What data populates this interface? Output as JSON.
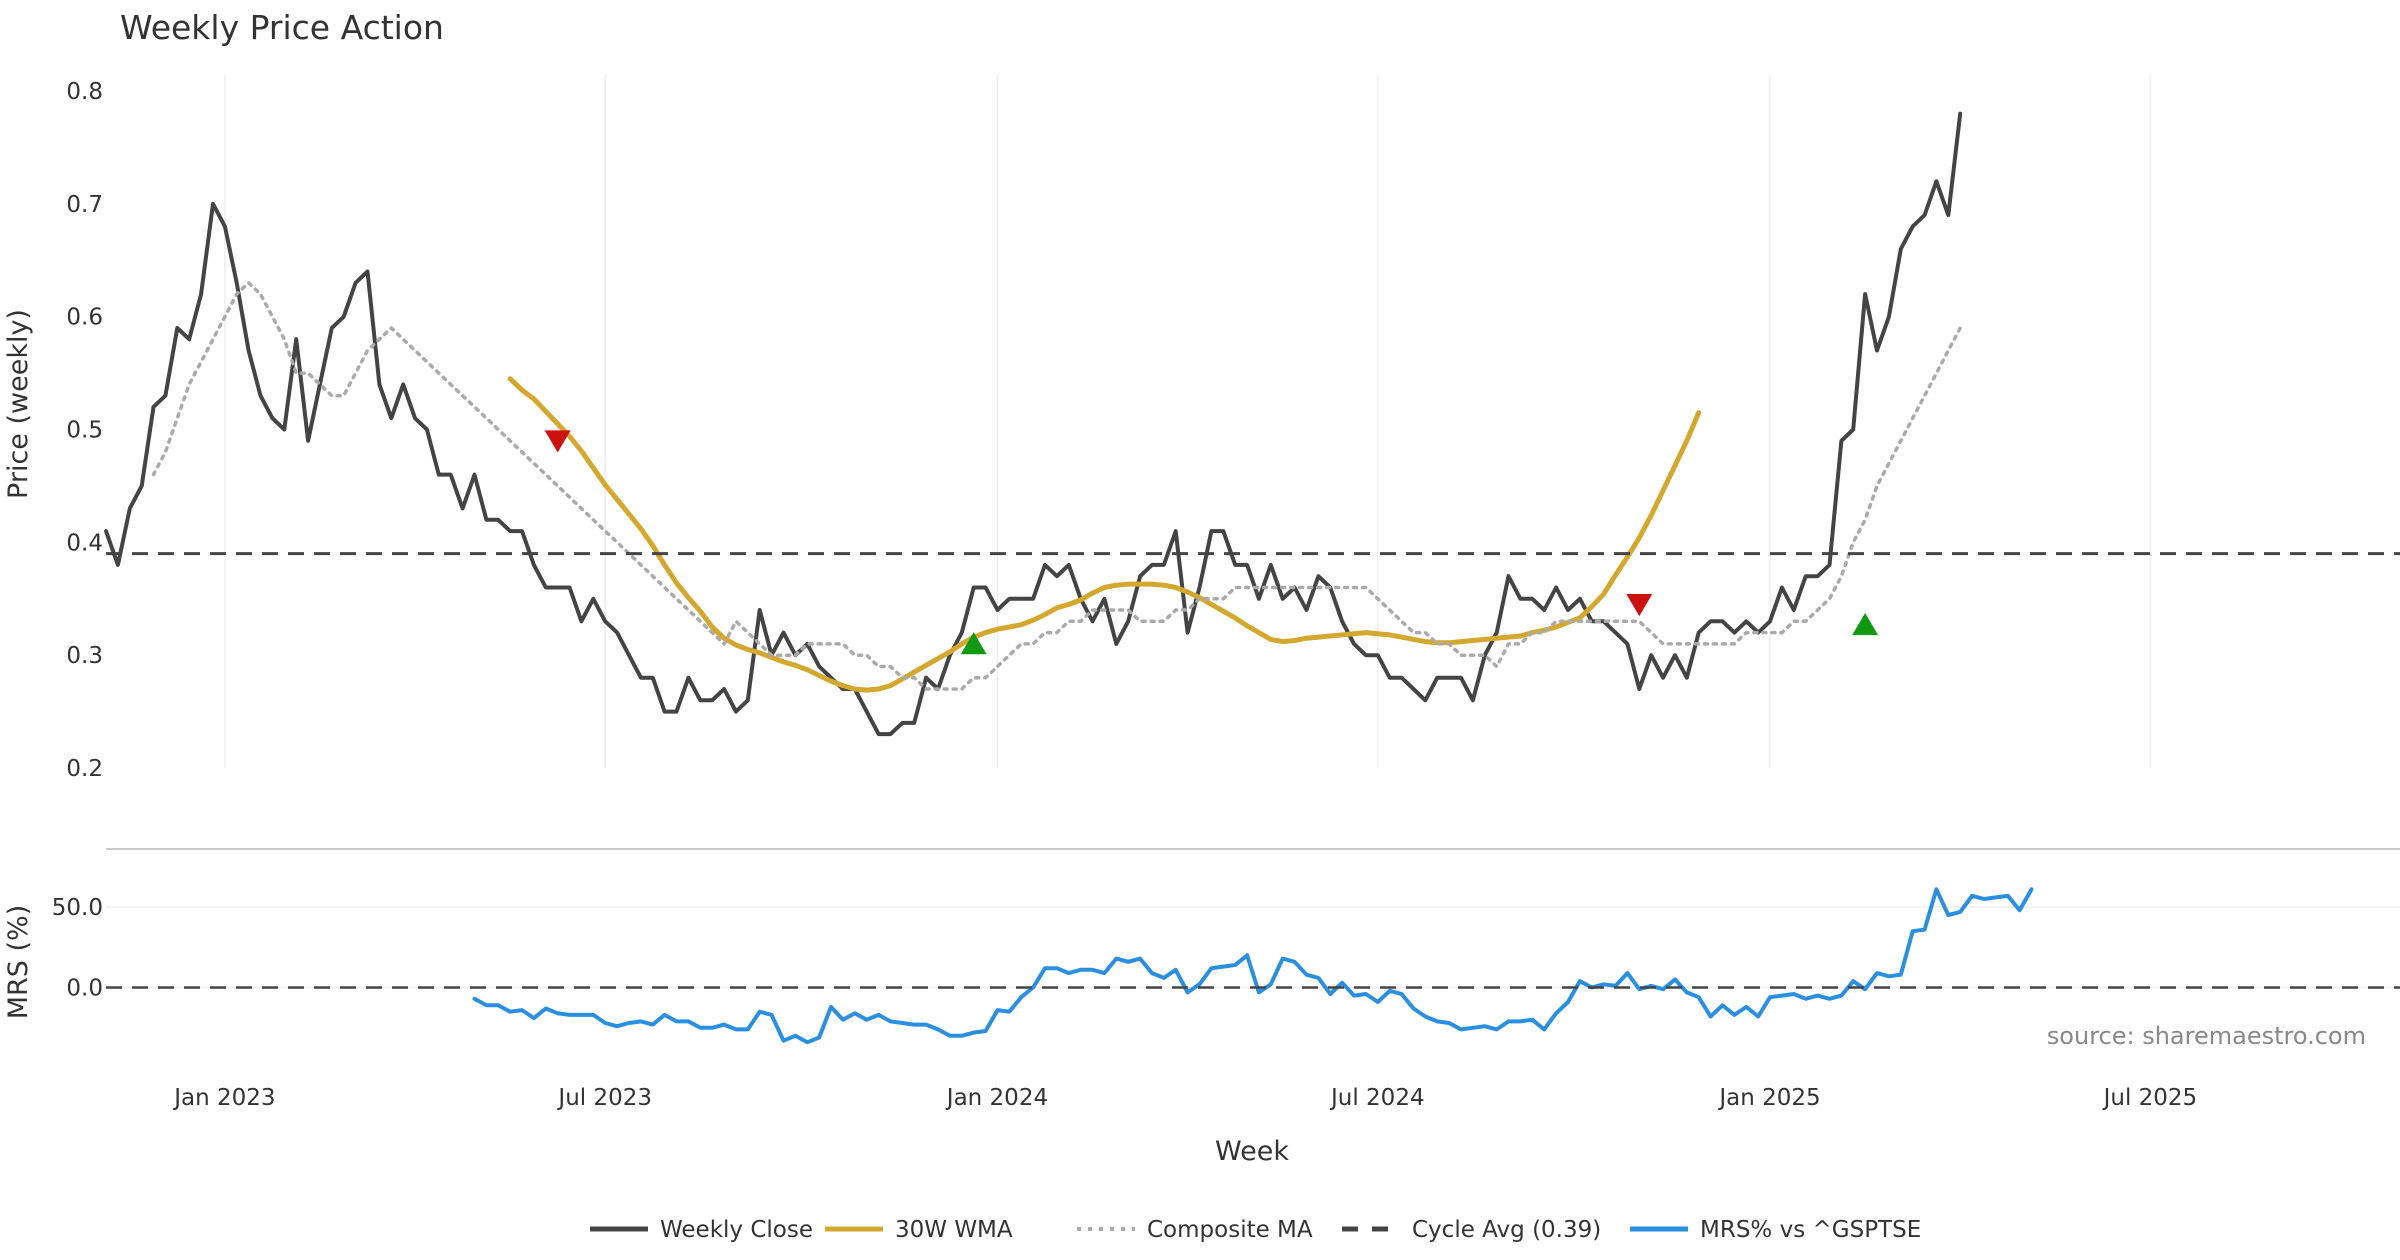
{
  "chart_data": {
    "type": "line",
    "title": "Weekly Price Action",
    "xlabel": "Week",
    "source": "source: sharemaestro.com",
    "x_ticks": [
      {
        "label": "Jan 2023",
        "week": 10
      },
      {
        "label": "Jul 2023",
        "week": 42
      },
      {
        "label": "Jan 2024",
        "week": 75
      },
      {
        "label": "Jul 2024",
        "week": 107
      },
      {
        "label": "Jan 2025",
        "week": 140
      },
      {
        "label": "Jul 2025",
        "week": 172
      }
    ],
    "week_range": [
      0,
      193
    ],
    "price_panel": {
      "ylabel": "Price (weekly)",
      "ylim": [
        0.2,
        0.8
      ],
      "yticks": [
        "0.2",
        "0.3",
        "0.4",
        "0.5",
        "0.6",
        "0.7",
        "0.8"
      ],
      "grid": "vertical",
      "cycle_avg": 0.39,
      "series": [
        {
          "name": "Weekly Close",
          "color": "#444444",
          "style": "solid",
          "start_week": 0,
          "values": [
            0.41,
            0.38,
            0.43,
            0.45,
            0.52,
            0.53,
            0.59,
            0.58,
            0.62,
            0.7,
            0.68,
            0.63,
            0.57,
            0.53,
            0.51,
            0.5,
            0.58,
            0.49,
            0.54,
            0.59,
            0.6,
            0.63,
            0.64,
            0.54,
            0.51,
            0.54,
            0.51,
            0.5,
            0.46,
            0.46,
            0.43,
            0.46,
            0.42,
            0.42,
            0.41,
            0.41,
            0.38,
            0.36,
            0.36,
            0.36,
            0.33,
            0.35,
            0.33,
            0.32,
            0.3,
            0.28,
            0.28,
            0.25,
            0.25,
            0.28,
            0.26,
            0.26,
            0.27,
            0.25,
            0.26,
            0.34,
            0.3,
            0.32,
            0.3,
            0.31,
            0.29,
            0.28,
            0.27,
            0.27,
            0.25,
            0.23,
            0.23,
            0.24,
            0.24,
            0.28,
            0.27,
            0.3,
            0.32,
            0.36,
            0.36,
            0.34,
            0.35,
            0.35,
            0.35,
            0.38,
            0.37,
            0.38,
            0.35,
            0.33,
            0.35,
            0.31,
            0.33,
            0.37,
            0.38,
            0.38,
            0.41,
            0.32,
            0.36,
            0.41,
            0.41,
            0.38,
            0.38,
            0.35,
            0.38,
            0.35,
            0.36,
            0.34,
            0.37,
            0.36,
            0.33,
            0.31,
            0.3,
            0.3,
            0.28,
            0.28,
            0.27,
            0.26,
            0.28,
            0.28,
            0.28,
            0.26,
            0.3,
            0.32,
            0.37,
            0.35,
            0.35,
            0.34,
            0.36,
            0.34,
            0.35,
            0.33,
            0.33,
            0.32,
            0.31,
            0.27,
            0.3,
            0.28,
            0.3,
            0.28,
            0.32,
            0.33,
            0.33,
            0.32,
            0.33,
            0.32,
            0.33,
            0.36,
            0.34,
            0.37,
            0.37,
            0.38,
            0.49,
            0.5,
            0.62,
            0.57,
            0.6,
            0.66,
            0.68,
            0.69,
            0.72,
            0.69,
            0.78
          ]
        },
        {
          "name": "30W WMA",
          "color": "#d4a82e",
          "style": "solid",
          "start_week": 34,
          "values": [
            0.545,
            0.535,
            0.527,
            0.516,
            0.505,
            0.494,
            0.481,
            0.466,
            0.451,
            0.438,
            0.425,
            0.412,
            0.397,
            0.38,
            0.364,
            0.351,
            0.339,
            0.325,
            0.315,
            0.309,
            0.305,
            0.302,
            0.298,
            0.294,
            0.291,
            0.287,
            0.282,
            0.277,
            0.273,
            0.27,
            0.269,
            0.27,
            0.273,
            0.279,
            0.285,
            0.291,
            0.297,
            0.303,
            0.31,
            0.316,
            0.32,
            0.323,
            0.325,
            0.327,
            0.331,
            0.336,
            0.342,
            0.345,
            0.349,
            0.355,
            0.36,
            0.362,
            0.363,
            0.363,
            0.363,
            0.362,
            0.36,
            0.356,
            0.351,
            0.345,
            0.339,
            0.333,
            0.326,
            0.32,
            0.314,
            0.312,
            0.313,
            0.315,
            0.316,
            0.317,
            0.318,
            0.319,
            0.32,
            0.319,
            0.318,
            0.316,
            0.314,
            0.312,
            0.311,
            0.311,
            0.312,
            0.313,
            0.314,
            0.315,
            0.316,
            0.317,
            0.32,
            0.322,
            0.325,
            0.329,
            0.333,
            0.343,
            0.354,
            0.371,
            0.387,
            0.404,
            0.424,
            0.446,
            0.468,
            0.49,
            0.515
          ]
        },
        {
          "name": "Composite MA",
          "color": "#aaaaaa",
          "style": "dotted",
          "start_week": 4,
          "values": [
            0.46,
            0.48,
            0.51,
            0.54,
            0.56,
            0.58,
            0.6,
            0.62,
            0.63,
            0.62,
            0.6,
            0.58,
            0.55,
            0.55,
            0.54,
            0.53,
            0.53,
            0.55,
            0.57,
            0.58,
            0.59,
            0.58,
            0.57,
            0.56,
            0.55,
            0.54,
            0.53,
            0.52,
            0.51,
            0.5,
            0.49,
            0.48,
            0.47,
            0.46,
            0.45,
            0.44,
            0.43,
            0.42,
            0.41,
            0.4,
            0.39,
            0.38,
            0.37,
            0.36,
            0.35,
            0.34,
            0.33,
            0.32,
            0.31,
            0.33,
            0.32,
            0.31,
            0.3,
            0.3,
            0.3,
            0.31,
            0.31,
            0.31,
            0.31,
            0.3,
            0.3,
            0.29,
            0.29,
            0.28,
            0.28,
            0.27,
            0.27,
            0.27,
            0.27,
            0.28,
            0.28,
            0.29,
            0.3,
            0.31,
            0.31,
            0.32,
            0.32,
            0.33,
            0.33,
            0.34,
            0.34,
            0.34,
            0.34,
            0.33,
            0.33,
            0.33,
            0.34,
            0.34,
            0.35,
            0.35,
            0.35,
            0.36,
            0.36,
            0.36,
            0.36,
            0.36,
            0.36,
            0.36,
            0.36,
            0.36,
            0.36,
            0.36,
            0.36,
            0.35,
            0.34,
            0.33,
            0.32,
            0.32,
            0.31,
            0.31,
            0.3,
            0.3,
            0.3,
            0.29,
            0.31,
            0.31,
            0.32,
            0.32,
            0.33,
            0.33,
            0.33,
            0.33,
            0.33,
            0.33,
            0.33,
            0.33,
            0.32,
            0.31,
            0.31,
            0.31,
            0.31,
            0.31,
            0.31,
            0.31,
            0.32,
            0.32,
            0.32,
            0.32,
            0.33,
            0.33,
            0.34,
            0.35,
            0.37,
            0.4,
            0.42,
            0.45,
            0.47,
            0.49,
            0.51,
            0.53,
            0.55,
            0.57,
            0.59
          ]
        },
        {
          "name": "Cycle Avg (0.39)",
          "color": "#444444",
          "style": "dashed",
          "constant": 0.39
        }
      ],
      "markers": [
        {
          "type": "sell",
          "week": 38,
          "value": 0.49,
          "color": "#cc1111"
        },
        {
          "type": "buy",
          "week": 73,
          "value": 0.31,
          "color": "#119911"
        },
        {
          "type": "sell",
          "week": 129,
          "value": 0.345,
          "color": "#cc1111"
        },
        {
          "type": "buy",
          "week": 148,
          "value": 0.327,
          "color": "#119911"
        }
      ]
    },
    "mrs_panel": {
      "ylabel": "MRS (%)",
      "yticks": [
        "50.0",
        "0.0"
      ],
      "ylim": [
        -45,
        73
      ],
      "series": [
        {
          "name": "MRS% vs ^GSPTSE",
          "color": "#2a8fe0",
          "style": "solid",
          "start_week": 31,
          "values": [
            -7,
            -11,
            -11,
            -15,
            -14,
            -19,
            -13,
            -16,
            -17,
            -17,
            -17,
            -22,
            -24,
            -22,
            -21,
            -23,
            -17,
            -21,
            -21,
            -25,
            -25,
            -23,
            -26,
            -26,
            -15,
            -17,
            -33,
            -30,
            -34,
            -31,
            -12,
            -20,
            -16,
            -20,
            -17,
            -21,
            -22,
            -23,
            -23,
            -26,
            -30,
            -30,
            -28,
            -27,
            -14,
            -15,
            -6,
            0,
            12,
            12,
            9,
            11,
            11,
            9,
            18,
            16,
            18,
            9,
            6,
            11,
            -3,
            2,
            12,
            13,
            14,
            20,
            -3,
            2,
            18,
            16,
            8,
            6,
            -4,
            3,
            -5,
            -4,
            -9,
            -2,
            -4,
            -13,
            -18,
            -21,
            -22,
            -26,
            -25,
            -24,
            -26,
            -21,
            -21,
            -20,
            -26,
            -16,
            -9,
            4,
            0,
            2,
            1,
            9,
            -1,
            1,
            -1,
            5,
            -3,
            -6,
            -18,
            -11,
            -17,
            -12,
            -18,
            -6,
            -5,
            -4,
            -7,
            -5,
            -7,
            -5,
            4,
            -1,
            9,
            7,
            8,
            35,
            36,
            61,
            45,
            47,
            57,
            55,
            56,
            57,
            48,
            61
          ]
        },
        {
          "name": "zero",
          "color": "#444444",
          "style": "dashed",
          "constant": 0
        }
      ]
    },
    "legend": [
      {
        "label": "Weekly Close",
        "color": "#444444",
        "style": "solid"
      },
      {
        "label": "30W WMA",
        "color": "#d4a82e",
        "style": "solid"
      },
      {
        "label": "Composite MA",
        "color": "#aaaaaa",
        "style": "dotted"
      },
      {
        "label": "Cycle Avg (0.39)",
        "color": "#444444",
        "style": "dashed"
      },
      {
        "label": "MRS% vs ^GSPTSE",
        "color": "#2a8fe0",
        "style": "solid"
      }
    ]
  }
}
